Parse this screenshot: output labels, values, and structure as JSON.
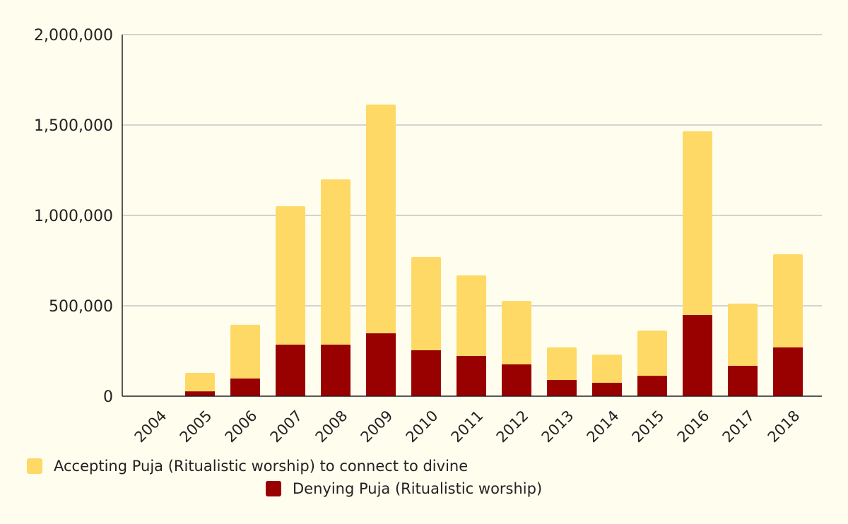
{
  "chart_data": {
    "type": "bar",
    "stacked": true,
    "title": "",
    "xlabel": "",
    "ylabel": "",
    "ylim": [
      0,
      2000000
    ],
    "yticks": [
      0,
      500000,
      1000000,
      1500000,
      2000000
    ],
    "ytick_labels": [
      "0",
      "500,000",
      "1,000,000",
      "1,500,000",
      "2,000,000"
    ],
    "grid": true,
    "legend_position": "bottom",
    "categories": [
      "2004",
      "2005",
      "2006",
      "2007",
      "2008",
      "2009",
      "2010",
      "2011",
      "2012",
      "2013",
      "2014",
      "2015",
      "2016",
      "2017",
      "2018"
    ],
    "series": [
      {
        "name": "Denying Puja (Ritualistic worship)",
        "color": "#990000",
        "values": [
          0,
          27000,
          98000,
          285000,
          285000,
          348000,
          254000,
          223000,
          176000,
          90000,
          74000,
          113000,
          449000,
          168000,
          270000
        ]
      },
      {
        "name": "Accepting Puja (Ritualistic worship) to connect to divine",
        "color": "#ffd966",
        "values": [
          0,
          102000,
          297000,
          766000,
          914000,
          1265000,
          516000,
          445000,
          351000,
          180000,
          156000,
          250000,
          1016000,
          344000,
          515000
        ]
      }
    ]
  }
}
